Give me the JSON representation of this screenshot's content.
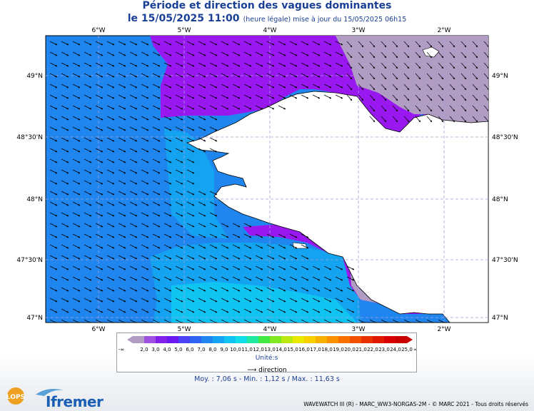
{
  "title": "Période et direction des vagues dominantes",
  "date": "le 15/05/2025 11:00",
  "subtitle": "(heure légale) mise à jour du 15/05/2025 06h15",
  "lon_labels": [
    "6°W",
    "5°W",
    "4°W",
    "3°W",
    "2°W"
  ],
  "lat_labels": [
    "49°N",
    "48°30'N",
    "48°N",
    "47°30'N",
    "47°N"
  ],
  "legend": {
    "ticks": [
      "-∞",
      "2,0",
      "3,0",
      "4,0",
      "5,0",
      "6,0",
      "7,0",
      "8,0",
      "9,0",
      "10,0",
      "11,0",
      "12,0",
      "13,0",
      "14,0",
      "15,0",
      "16,0",
      "17,0",
      "18,0",
      "19,0",
      "20,0",
      "21,0",
      "22,0",
      "23,0",
      "24,0",
      "25,0",
      "∞"
    ],
    "colors": [
      "#b19cc4",
      "#a050e0",
      "#8020e8",
      "#6a18f0",
      "#4a40f4",
      "#2d63f0",
      "#1e86ee",
      "#14a3f0",
      "#10c4f2",
      "#10dcea",
      "#20e8a0",
      "#40e840",
      "#80e820",
      "#b8e810",
      "#e8e800",
      "#f8d000",
      "#f8b000",
      "#f89000",
      "#f87000",
      "#f05000",
      "#e83000",
      "#e01800",
      "#d80000",
      "#c80000"
    ],
    "unit": "Unité:s"
  },
  "direction_key": "direction",
  "stats": "Moy. : 7,06 s   -   Min. : 1,12 s / Max. : 11,63 s",
  "footer": "WAVEWATCH III (R) - MARC_WW3-NORGAS-2M - © MARC 2021 - Tous droits réservés",
  "logos": {
    "lops": "LOPS",
    "ifremer": "Ifremer"
  },
  "map_colors": {
    "deep_blue": "#1e86ee",
    "light_blue": "#14a3f0",
    "cyan": "#10c4f2",
    "purple": "#9a18f0",
    "grey_purple": "#b19cc4",
    "land": "#ffffff"
  }
}
